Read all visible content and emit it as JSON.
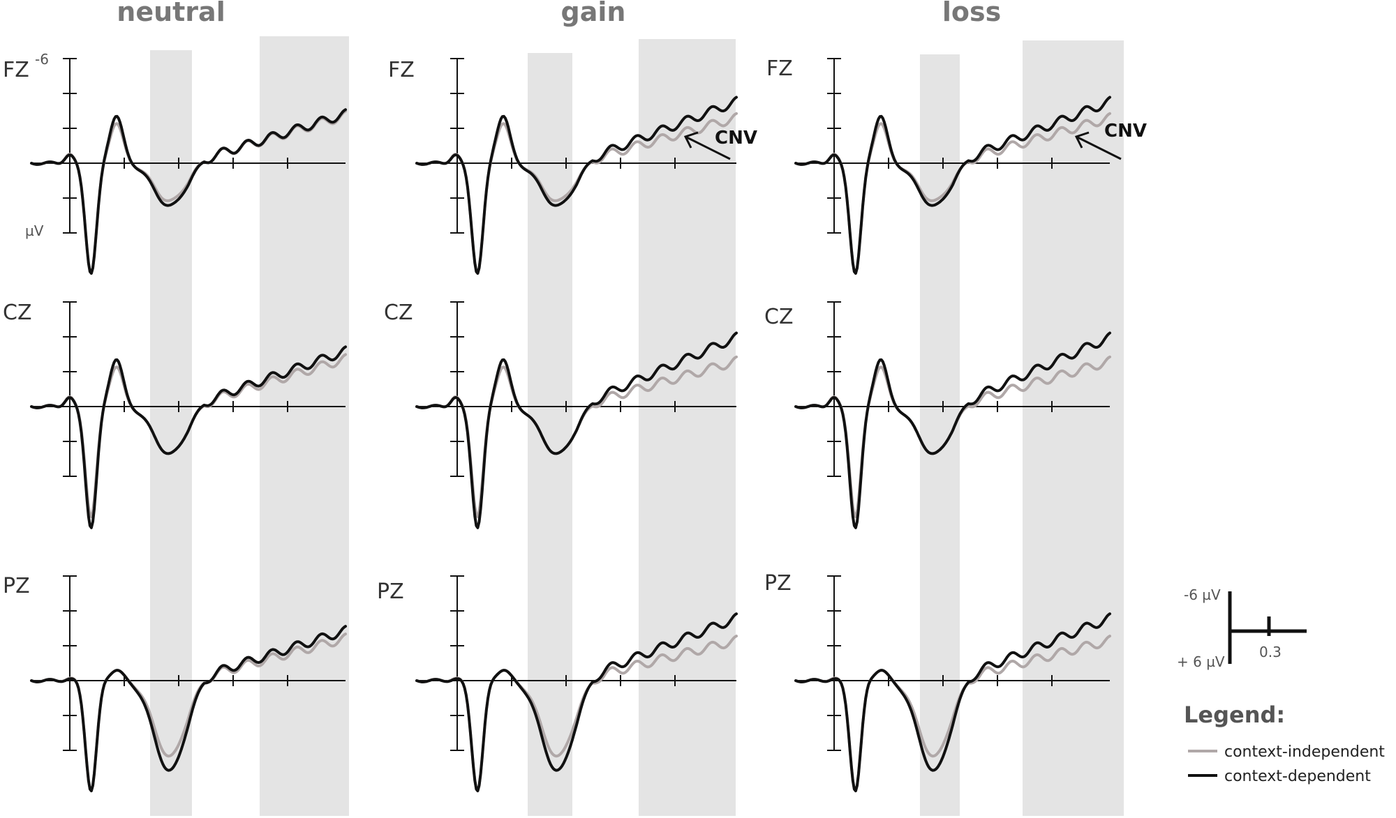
{
  "chart_data": {
    "type": "line",
    "columns": [
      "neutral",
      "gain",
      "loss"
    ],
    "electrodes": [
      "FZ",
      "CZ",
      "PZ"
    ],
    "series": [
      {
        "name": "context-independent",
        "color": "#b0a8a8"
      },
      {
        "name": "context-dependent",
        "color": "#111111"
      }
    ],
    "ylim": [
      6,
      -6
    ],
    "y_inverted": true,
    "y_tick_label": "-6",
    "y_unit": "µV",
    "x_scale_label": "0.3",
    "shaded_windows": "two gray time windows per panel",
    "annotations": [
      {
        "panel": "gain-FZ",
        "text": "CNV"
      },
      {
        "panel": "loss-FZ",
        "text": "CNV"
      }
    ],
    "scale_bar": {
      "top": "-6 µV",
      "bottom": "+ 6 µV",
      "x": "0.3"
    },
    "legend": {
      "title": "Legend:",
      "items": [
        "context-independent",
        "context-dependent"
      ]
    }
  },
  "colors": {
    "independent": "#b0a8a8",
    "dependent": "#111111",
    "shade": "#e4e4e4"
  }
}
